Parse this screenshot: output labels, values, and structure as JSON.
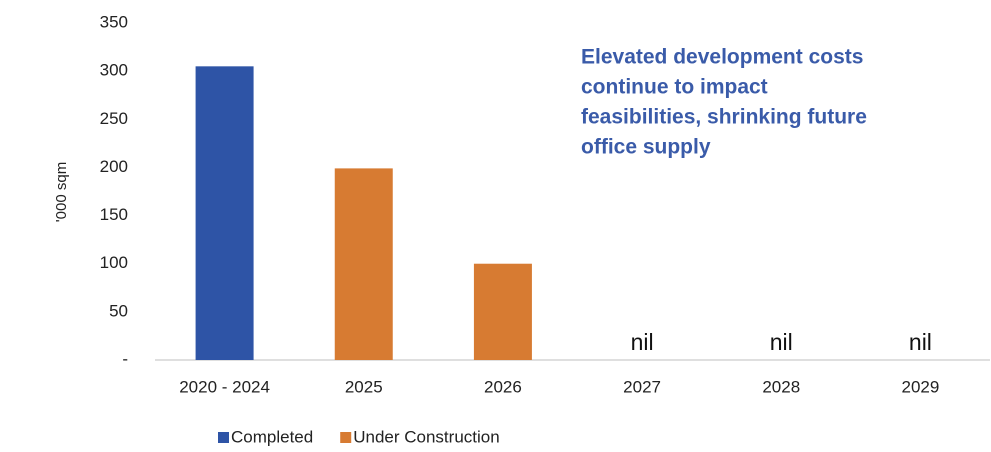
{
  "chart_data": {
    "type": "bar",
    "y_label": "'000 sqm",
    "annotation": [
      "Elevated development costs",
      "continue to impact",
      "feasibilities, shrinking future",
      "office supply"
    ],
    "categories": [
      "2020 - 2024",
      "2025",
      "2026",
      "2027",
      "2028",
      "2029"
    ],
    "series": [
      {
        "name": "Completed",
        "color": "#2e54a6",
        "values": [
          305,
          null,
          null,
          null,
          null,
          null
        ]
      },
      {
        "name": "Under Construction",
        "color": "#d77b32",
        "values": [
          null,
          199,
          100,
          0,
          0,
          0
        ],
        "value_labels": [
          null,
          null,
          null,
          "nil",
          "nil",
          "nil"
        ]
      }
    ],
    "ylim": [
      0,
      350
    ],
    "yticks": [
      {
        "value": 0,
        "label": "-"
      },
      50,
      100,
      150,
      200,
      250,
      300,
      350
    ],
    "grid": false,
    "legend": "bottom"
  }
}
